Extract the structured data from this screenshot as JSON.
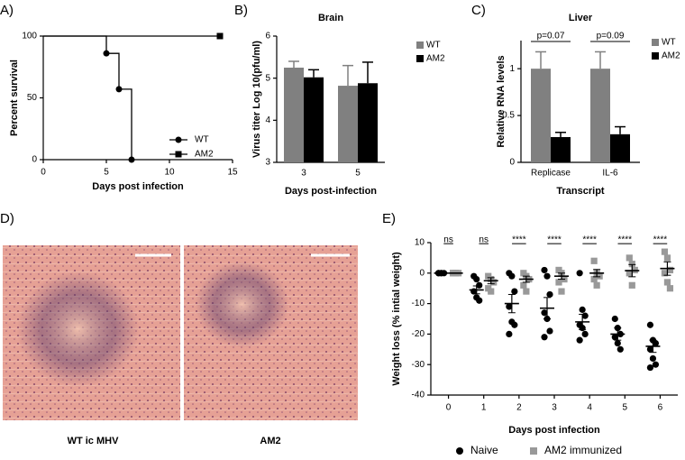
{
  "chart_data": [
    {
      "type": "step",
      "panel_label": "A)",
      "xlabel": "Days post infection",
      "ylabel": "Percent survival",
      "xlim": [
        0,
        15
      ],
      "xticks": [
        0,
        5,
        10,
        15
      ],
      "ylim": [
        0,
        100
      ],
      "yticks": [
        0,
        50,
        100
      ],
      "series": [
        {
          "name": "WT",
          "color": "#000000",
          "marker": "circle",
          "x": [
            0,
            5,
            6,
            7
          ],
          "values": [
            100,
            86,
            57,
            0
          ]
        },
        {
          "name": "AM2",
          "color": "#000000",
          "marker": "square",
          "x": [
            0,
            14
          ],
          "values": [
            100,
            100
          ]
        }
      ]
    },
    {
      "type": "bar",
      "panel_label": "B)",
      "title": "Brain",
      "xlabel": "Days post-infection",
      "ylabel": "Virus titer Log 10(pfu/ml)",
      "categories": [
        "3",
        "5"
      ],
      "ylim": [
        3,
        6
      ],
      "yticks": [
        3,
        4,
        5,
        6
      ],
      "series": [
        {
          "name": "WT",
          "color": "#808080",
          "values": [
            5.25,
            4.82
          ],
          "errors": [
            0.15,
            0.48
          ]
        },
        {
          "name": "AM2",
          "color": "#000000",
          "values": [
            5.02,
            4.88
          ],
          "errors": [
            0.18,
            0.5
          ]
        }
      ]
    },
    {
      "type": "bar",
      "panel_label": "C)",
      "title": "Liver",
      "xlabel": "Transcript",
      "ylabel": "Relative RNA levels",
      "categories": [
        "Replicase",
        "IL-6"
      ],
      "ylim": [
        0,
        1.3
      ],
      "yticks": [
        0,
        0.5,
        1
      ],
      "annotations": [
        "p=0.07",
        "p=0.09"
      ],
      "series": [
        {
          "name": "WT",
          "color": "#808080",
          "values": [
            1,
            1
          ],
          "errors": [
            0.18,
            0.18
          ]
        },
        {
          "name": "AM2",
          "color": "#000000",
          "values": [
            0.27,
            0.3
          ],
          "errors": [
            0.05,
            0.08
          ]
        }
      ]
    },
    {
      "type": "scatter",
      "panel_label": "E)",
      "xlabel": "Days post infection",
      "ylabel": "Weight loss (% intial weight)",
      "x": [
        0,
        1,
        2,
        3,
        4,
        5,
        6
      ],
      "xlim": [
        -0.5,
        6.5
      ],
      "xticks": [
        0,
        1,
        2,
        3,
        4,
        5,
        6
      ],
      "ylim": [
        -40,
        10
      ],
      "yticks": [
        -40,
        -30,
        -20,
        -10,
        0,
        10
      ],
      "annotations": [
        "ns",
        "ns",
        "****",
        "****",
        "****",
        "****",
        "****"
      ],
      "series": [
        {
          "name": "Naive",
          "color": "#000000",
          "marker": "circle",
          "values": [
            [
              0,
              0,
              0,
              0,
              0
            ],
            [
              -1,
              -2,
              -4,
              -6,
              -8,
              -9
            ],
            [
              0,
              -1,
              -6,
              -11,
              -16,
              -17,
              -20
            ],
            [
              1,
              -1,
              -7,
              -13,
              -15,
              -19,
              -21
            ],
            [
              0,
              -12,
              -14,
              -17,
              -18,
              -20,
              -22
            ],
            [
              -15,
              -18,
              -20,
              -21,
              -23,
              -25
            ],
            [
              -17,
              -22,
              -23,
              -25,
              -28,
              -30,
              -31
            ]
          ],
          "means": [
            0,
            -5.5,
            -10,
            -11.5,
            -16,
            -20,
            -24
          ],
          "errors": [
            0,
            1.3,
            3,
            3.5,
            2.5,
            2,
            2
          ]
        },
        {
          "name": "AM2 immunized",
          "color": "#999999",
          "marker": "square",
          "values": [
            [
              0,
              0,
              0,
              0,
              0
            ],
            [
              -1,
              -2,
              -3,
              -5,
              -6
            ],
            [
              0,
              -1,
              -2,
              -4,
              -6
            ],
            [
              1,
              0,
              -2,
              -3,
              -6
            ],
            [
              4,
              0,
              -1,
              -2,
              -4
            ],
            [
              5,
              3,
              1,
              0,
              -4
            ],
            [
              7,
              5,
              1,
              0,
              -3,
              -5
            ]
          ],
          "means": [
            0,
            -2.5,
            -2,
            -1,
            0,
            0.8,
            1.5
          ],
          "errors": [
            0,
            1,
            1,
            1,
            1.2,
            2,
            2.2
          ]
        }
      ]
    }
  ],
  "panel_d": {
    "panel_label": "D)",
    "captions": [
      "WT ic MHV",
      "AM2"
    ]
  }
}
